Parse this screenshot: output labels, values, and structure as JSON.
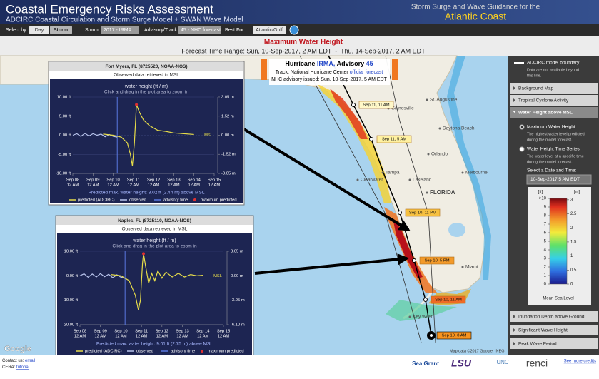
{
  "header": {
    "title": "Coastal Emergency Risks Assessment",
    "subtitle": "ADCIRC Coastal Circulation and Storm Surge Model + SWAN Wave Model",
    "guidance": "Storm Surge and Wave Guidance for the",
    "region": "Atlantic Coast"
  },
  "toolbar": {
    "select_by": "Select by",
    "day": "Day",
    "storm_button": "Storm",
    "storm_label": "Storm",
    "storm": "2017 - IRMA",
    "advisory_label": "Advisory/Track",
    "advisory": "45 - NHC forecast",
    "best_for_label": "Best For",
    "best_for": "Atlantic/Gulf"
  },
  "map_title": {
    "title": "Maximum Water Height",
    "range": "Forecast Time Range: Sun, 10-Sep-2017, 2 AM EDT  -  Thu, 14-Sep-2017, 2 AM EDT"
  },
  "storm_box": {
    "hurricane": "Hurricane",
    "name": "IRMA,",
    "advisory_word": "Advisory",
    "advisory": "45",
    "track": "Track: National Hurricane Center",
    "track_link": "official forecast",
    "issued": "NHC advisory issued: Sun, 10-Sep-2017, 5 AM EDT"
  },
  "map_labels": [
    "Gainesville",
    "St. Augustine",
    "Daytona Beach",
    "Orlando",
    "Melbourne",
    "Clearwater",
    "Tampa",
    "Lakeland",
    "FLORIDA",
    "Miami",
    "Key West"
  ],
  "track_labels": [
    "Sep 11, 11 AM",
    "Sep 11, 5 AM",
    "Sep 10, 11 PM",
    "Sep 10, 5 PM",
    "Sep 10, 11 AM",
    "Sep 10, 8 AM"
  ],
  "map_credits": {
    "google": "Google",
    "data": "Map data ©2017 Google, INEGI"
  },
  "popups": [
    {
      "title": "Fort Myers, FL (8725520, NOAA-NOS)",
      "subtitle": "Observed data retrieved in MSL",
      "chart": {
        "type": "line",
        "title": "water height (ft / m)",
        "hint": "Click and drag in the plot area to zoom in",
        "msl_label": "MSL",
        "xlim": [
          8,
          15
        ],
        "xticks": [
          {
            "value": 8,
            "label": "Sep 08",
            "time": "12 AM"
          },
          {
            "value": 9,
            "label": "Sep 09",
            "time": "12 AM"
          },
          {
            "value": 10,
            "label": "Sep 10",
            "time": "12 AM"
          },
          {
            "value": 11,
            "label": "Sep 11",
            "time": "12 AM"
          },
          {
            "value": 12,
            "label": "Sep 12",
            "time": "12 AM"
          },
          {
            "value": 13,
            "label": "Sep 13",
            "time": "12 AM"
          },
          {
            "value": 14,
            "label": "Sep 14",
            "time": "12 AM"
          },
          {
            "value": 15,
            "label": "Sep 15",
            "time": "12 AM"
          }
        ],
        "ylim": [
          -10,
          10
        ],
        "yticks": [
          {
            "value": 10,
            "label": "10.00 ft"
          },
          {
            "value": 5,
            "label": "5.00 ft"
          },
          {
            "value": 0,
            "label": "0.00 ft"
          },
          {
            "value": -5,
            "label": "-5.00 ft"
          },
          {
            "value": -10,
            "label": "-10.00 ft"
          }
        ],
        "y2lim": [
          -3.048,
          3.048
        ],
        "y2ticks": [
          {
            "value": 3.05,
            "label": "3.05 m"
          },
          {
            "value": 1.52,
            "label": "1.52 m"
          },
          {
            "value": 0,
            "label": "0.00 m"
          },
          {
            "value": -1.52,
            "label": "-1.52 m"
          },
          {
            "value": -3.05,
            "label": "-3.05 m"
          }
        ],
        "series": [
          {
            "name": "predicted (ADCIRC)",
            "color": "#e6dc4a",
            "x": [
              9.5,
              10,
              10.4,
              10.7,
              10.85,
              10.95,
              11.05,
              11.15,
              11.3,
              11.5,
              11.8,
              12.2,
              12.6,
              13,
              13.5,
              14
            ],
            "values": [
              0.3,
              0,
              -0.5,
              -2,
              -5,
              -8,
              -2,
              8.02,
              6,
              4,
              2.5,
              1.3,
              1,
              0.6,
              0.4,
              0.2
            ]
          },
          {
            "name": "observed",
            "color": "#b8c4ec",
            "x": [
              8,
              8.2,
              8.4,
              8.6,
              8.8,
              9,
              9.2,
              9.4,
              9.6,
              9.8,
              10,
              10.2
            ],
            "values": [
              0,
              0.4,
              -0.3,
              0.5,
              -0.2,
              0.4,
              0,
              0.3,
              -0.4,
              0.2,
              -0.3,
              -0.5
            ]
          }
        ],
        "advisory": {
          "name": "advisory time",
          "color": "#5a78e0",
          "x": 10.2
        },
        "maximum": {
          "name": "maximum predicted",
          "color": "#e03030",
          "x": 11.15,
          "y": 8.02
        },
        "summary": "Predicted max. water height: 8.02 ft (2.44 m) above MSL"
      }
    },
    {
      "title": "Naples, FL (8725110, NOAA-NOS)",
      "subtitle": "Observed data retrieved in MSL",
      "chart": {
        "type": "line",
        "title": "water height (ft / m)",
        "hint": "Click and drag in the plot area to zoom in",
        "msl_label": "MSL",
        "xlim": [
          8,
          15
        ],
        "xticks": [
          {
            "value": 8,
            "label": "Sep 08",
            "time": "12 AM"
          },
          {
            "value": 9,
            "label": "Sep 09",
            "time": "12 AM"
          },
          {
            "value": 10,
            "label": "Sep 10",
            "time": "12 AM"
          },
          {
            "value": 11,
            "label": "Sep 11",
            "time": "12 AM"
          },
          {
            "value": 12,
            "label": "Sep 12",
            "time": "12 AM"
          },
          {
            "value": 13,
            "label": "Sep 13",
            "time": "12 AM"
          },
          {
            "value": 14,
            "label": "Sep 14",
            "time": "12 AM"
          },
          {
            "value": 15,
            "label": "Sep 15",
            "time": "12 AM"
          }
        ],
        "ylim": [
          -20,
          10
        ],
        "yticks": [
          {
            "value": 10,
            "label": "10.00 ft"
          },
          {
            "value": 0,
            "label": "0.00 ft"
          },
          {
            "value": -10,
            "label": "-10.00 ft"
          },
          {
            "value": -20,
            "label": "-20.00 ft"
          }
        ],
        "y2lim": [
          -6.096,
          3.048
        ],
        "y2ticks": [
          {
            "value": 3.05,
            "label": "3.05 m"
          },
          {
            "value": 0,
            "label": "0.00 m"
          },
          {
            "value": -3.05,
            "label": "-3.05 m"
          },
          {
            "value": -6.1,
            "label": "-6.10 m"
          }
        ],
        "series": [
          {
            "name": "predicted (ADCIRC)",
            "color": "#e6dc4a",
            "x": [
              9.5,
              10,
              10.4,
              10.7,
              10.85,
              10.95,
              11.05,
              11.1,
              11.2,
              11.35,
              11.5,
              11.65,
              11.8,
              12,
              12.2,
              12.5,
              12.8,
              13.1,
              13.4,
              13.7,
              14
            ],
            "values": [
              0.5,
              0,
              -2,
              -8,
              -14,
              -10,
              5,
              9.01,
              4,
              -3,
              1,
              -2,
              2,
              -1,
              1.5,
              -0.5,
              1,
              -0.5,
              0.5,
              0,
              0.2
            ]
          },
          {
            "name": "observed",
            "color": "#b8c4ec",
            "x": [
              8,
              8.2,
              8.4,
              8.6,
              8.8,
              9,
              9.2,
              9.4,
              9.6,
              9.8,
              10,
              10.2
            ],
            "values": [
              0,
              0.8,
              -0.6,
              0.7,
              -0.5,
              0.9,
              -0.4,
              0.6,
              -0.8,
              0.4,
              -0.6,
              -1
            ]
          }
        ],
        "advisory": {
          "name": "advisory time",
          "color": "#5a78e0",
          "x": 10.2
        },
        "maximum": {
          "name": "maximum predicted",
          "color": "#e03030",
          "x": 11.1,
          "y": 9.01
        },
        "summary": "Predicted max. water height: 9.01 ft (2.75 m) above MSL"
      }
    }
  ],
  "panel": {
    "boundary": "ADCIRC model boundary",
    "boundary_note_1": "Data are not available beyond",
    "boundary_note_2": "this line.",
    "background_map": "Background Map",
    "tropical": "Tropical Cyclone Activity",
    "water_height": "Water Height above MSL",
    "option_1": "Maximum Water Height",
    "option_1_desc_1": "The highest water level predicted",
    "option_1_desc_2": "during the model forecast.",
    "option_2": "Water Height Time Series",
    "option_2_desc_1": "The water level at a specific time",
    "option_2_desc_2": "during the model forecast.",
    "select_label": "Select a Date and Time:",
    "select_value": "10-Sep-2017 5 AM EDT",
    "colorbar": {
      "ft_label": "[ft]",
      "m_label": "[m]",
      "ft_range": [
        0,
        10
      ],
      "m_range": [
        0,
        3.048
      ],
      "ft_ticks": [
        {
          "value": 10,
          "label": ">10"
        },
        9,
        8,
        7,
        6,
        5,
        4,
        3,
        2,
        1,
        0
      ],
      "m_ticks": [
        3,
        2.5,
        2,
        1.5,
        1,
        0.5,
        0
      ],
      "caption": "Mean Sea Level"
    },
    "inundation": "Inundation Depth above Ground",
    "wave_height": "Significant Wave Height",
    "wave_period": "Peak Wave Period"
  },
  "footer": {
    "contact": "Contact us:",
    "email": "email",
    "cera": "CERA:",
    "tutorial": "tutorial",
    "sea_grant": "Sea Grant",
    "lsu": "LSU",
    "unc": "UNC",
    "renci": "renci",
    "credits": "See more credits"
  }
}
